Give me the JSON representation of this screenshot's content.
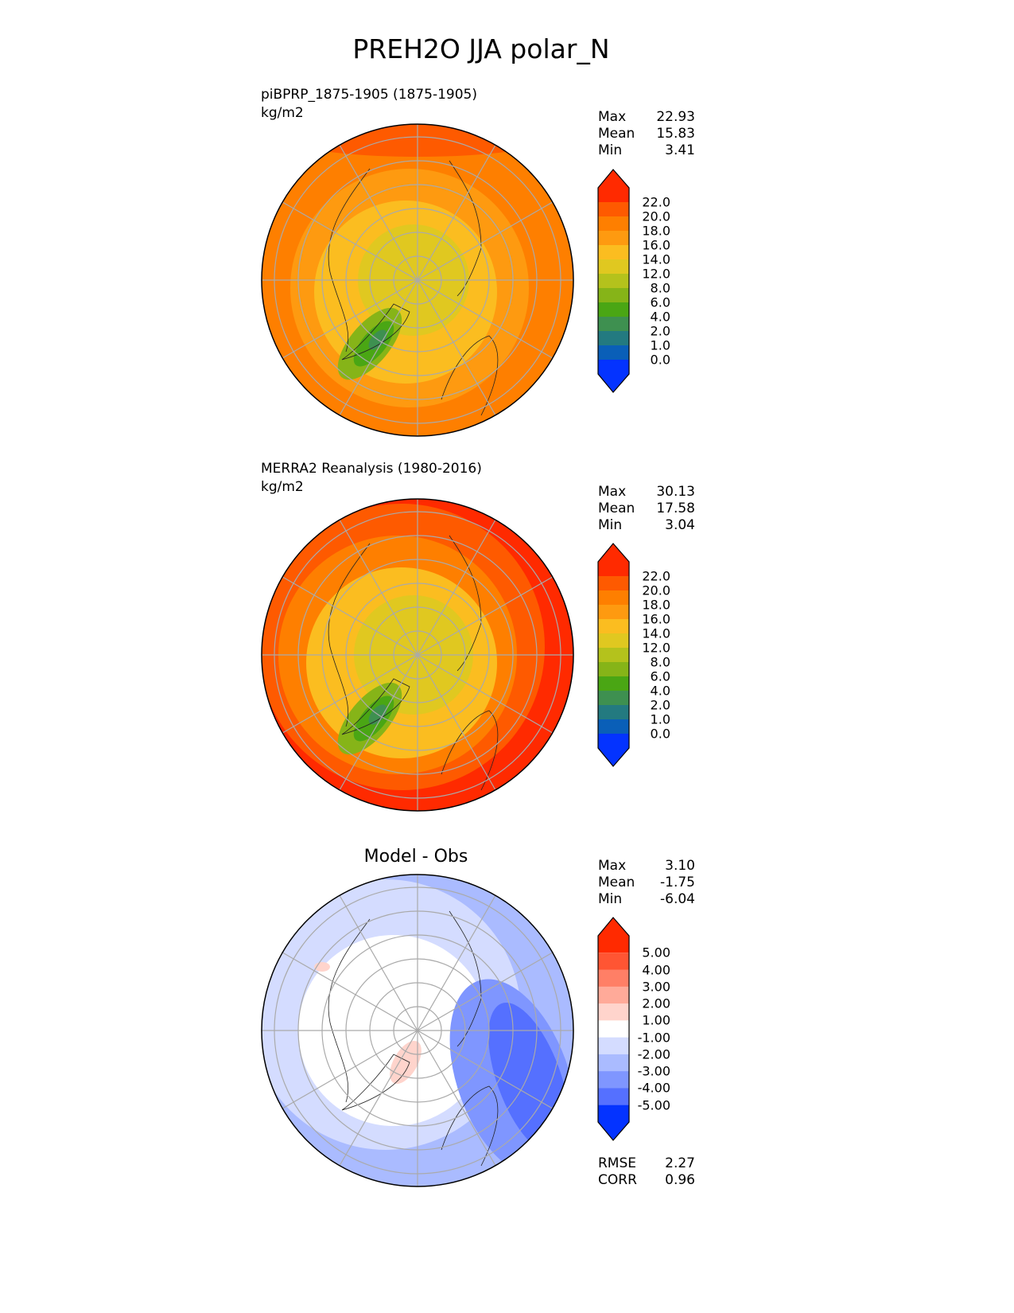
{
  "title": "PREH2O JJA polar_N",
  "panels": [
    {
      "title": "piBPRP_1875-1905 (1875-1905)",
      "units": "kg/m2",
      "stats": {
        "max_label": "Max",
        "max": "22.93",
        "mean_label": "Mean",
        "mean": "15.83",
        "min_label": "Min",
        "min": "3.41"
      }
    },
    {
      "title": "MERRA2 Reanalysis (1980-2016)",
      "units": "kg/m2",
      "stats": {
        "max_label": "Max",
        "max": "30.13",
        "mean_label": "Mean",
        "mean": "17.58",
        "min_label": "Min",
        "min": "3.04"
      }
    },
    {
      "title": "Model - Obs",
      "stats": {
        "max_label": "Max",
        "max": "3.10",
        "mean_label": "Mean",
        "mean": "-1.75",
        "min_label": "Min",
        "min": "-6.04"
      },
      "rmse_label": "RMSE",
      "rmse": "2.27",
      "corr_label": "CORR",
      "corr": "0.96"
    }
  ],
  "chart_data": [
    {
      "type": "heatmap",
      "projection": "polar stereographic north",
      "title": "piBPRP_1875-1905 (1875-1905)",
      "units": "kg/m2",
      "max": 22.93,
      "mean": 15.83,
      "min": 3.41
    },
    {
      "type": "heatmap",
      "projection": "polar stereographic north",
      "title": "MERRA2 Reanalysis (1980-2016)",
      "units": "kg/m2",
      "max": 30.13,
      "mean": 17.58,
      "min": 3.04
    },
    {
      "type": "heatmap",
      "projection": "polar stereographic north",
      "title": "Model - Obs",
      "max": 3.1,
      "mean": -1.75,
      "min": -6.04,
      "rmse": 2.27,
      "corr": 0.96
    }
  ],
  "colorbars": {
    "sequential": {
      "labels": [
        "22.0",
        "20.0",
        "18.0",
        "16.0",
        "14.0",
        "12.0",
        "8.0",
        "6.0",
        "4.0",
        "2.0",
        "1.0",
        "0.0"
      ],
      "colors": [
        "#ff2a00",
        "#fe5a00",
        "#fe7f00",
        "#fe9a10",
        "#fbbd20",
        "#e0c820",
        "#b4c21c",
        "#86b418",
        "#4aa614",
        "#3e9050",
        "#237a80",
        "#0a5fb8",
        "#0433ff"
      ]
    },
    "diff": {
      "labels": [
        "5.00",
        "4.00",
        "3.00",
        "2.00",
        "1.00",
        "-1.00",
        "-2.00",
        "-3.00",
        "-4.00",
        "-5.00"
      ],
      "colors": [
        "#ff2a00",
        "#ff5533",
        "#ff7f66",
        "#ffaa99",
        "#ffd4cc",
        "#ffffff",
        "#d4dcff",
        "#aabbff",
        "#7f96ff",
        "#5570ff",
        "#0433ff"
      ]
    }
  }
}
